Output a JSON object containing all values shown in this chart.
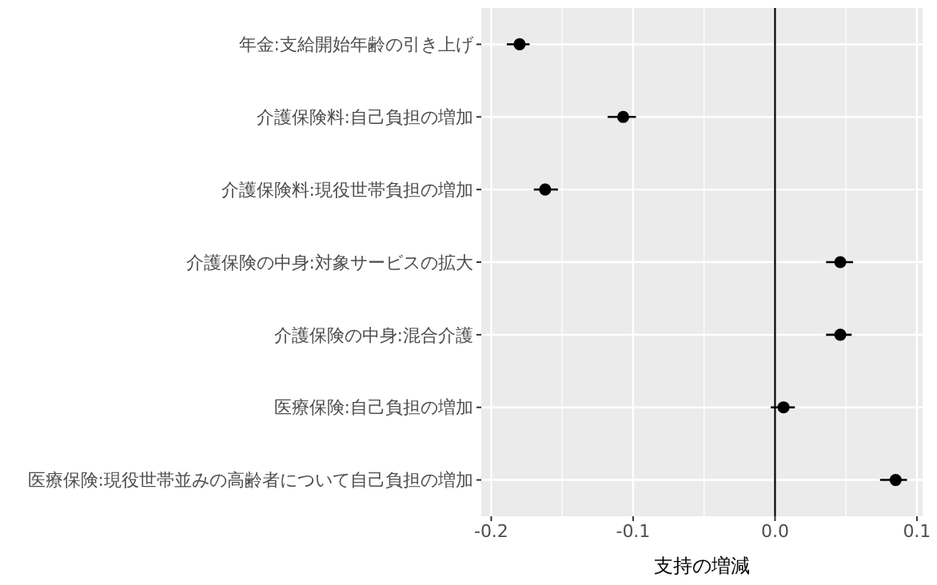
{
  "chart_data": {
    "type": "scatter",
    "orientation": "horizontal",
    "xlabel": "支持の増減",
    "categories": [
      "年金:支給開始年齢の引き上げ",
      "介護保険料:自己負担の増加",
      "介護保険料:現役世帯負担の増加",
      "介護保険の中身:対象サービスの拡大",
      "介護保険の中身:混合介護",
      "医療保険:自己負担の増加",
      "医療保険:現役世帯並みの高齢者について自己負担の増加"
    ],
    "values": [
      -0.18,
      -0.107,
      -0.162,
      0.046,
      0.046,
      0.006,
      0.085
    ],
    "errors": [
      [
        -0.189,
        -0.173
      ],
      [
        -0.118,
        -0.098
      ],
      [
        -0.17,
        -0.153
      ],
      [
        0.036,
        0.055
      ],
      [
        0.036,
        0.054
      ],
      [
        -0.003,
        0.014
      ],
      [
        0.074,
        0.093
      ]
    ],
    "color": "#000000",
    "marker": "circle",
    "xlim": [
      -0.207,
      0.104
    ],
    "xticks": [
      -0.2,
      -0.1,
      {
        "value": 0,
        "label": "0.0"
      },
      0.1
    ],
    "ref_lines": [
      {
        "axis": "x",
        "value": 0,
        "color": "#000000"
      }
    ],
    "grid": true
  }
}
